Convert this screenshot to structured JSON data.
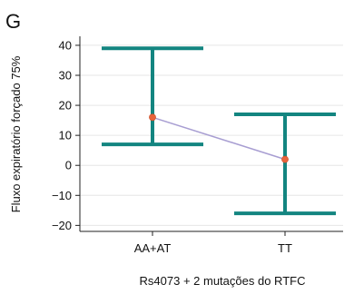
{
  "panel_label": "G",
  "chart_data": {
    "type": "line",
    "title": "",
    "xlabel": "Rs4073 + 2 mutações do RTFC",
    "ylabel": "Fluxo expiratório forçado 75%",
    "categories": [
      "AA+AT",
      "TT"
    ],
    "series": [
      {
        "values": [
          16,
          2
        ],
        "error_low": [
          7,
          -16
        ],
        "error_high": [
          39,
          17
        ]
      }
    ],
    "ylim": [
      -22,
      43
    ],
    "yticks": [
      -20,
      -10,
      0,
      10,
      20,
      30,
      40
    ],
    "ytick_labels": [
      "−20",
      "−10",
      "0",
      "10",
      "20",
      "30",
      "40"
    ],
    "grid": true,
    "legend": "none",
    "colors": {
      "error_bar": "#138580",
      "line": "#a89ed2",
      "point": "#e8643c",
      "grid": "#e6e6e6",
      "axis": "#222222"
    }
  }
}
